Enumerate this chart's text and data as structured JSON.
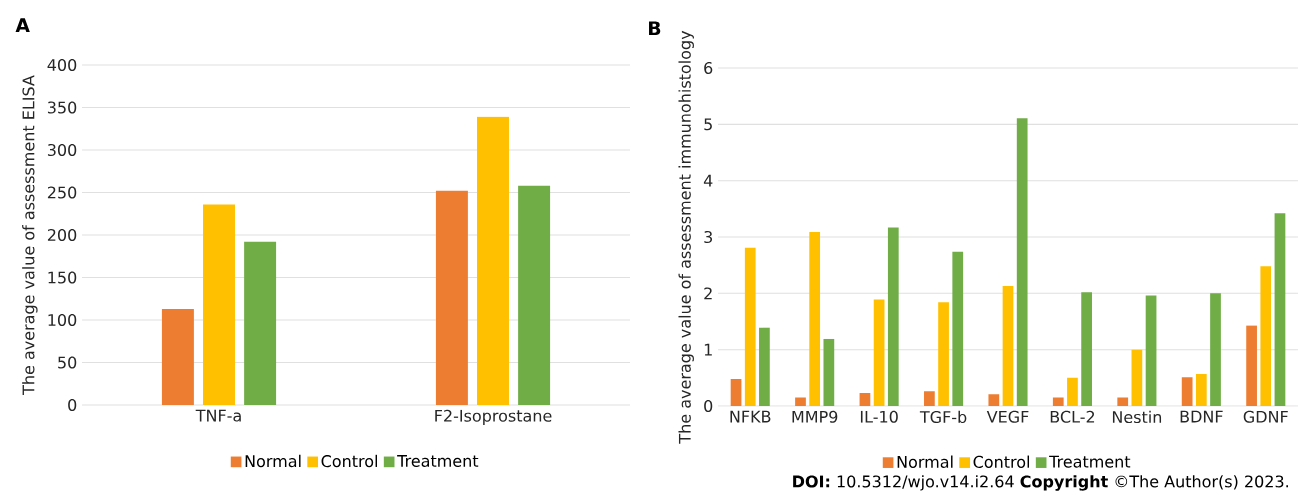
{
  "chart_data": [
    {
      "type": "bar",
      "title": "A",
      "ylabel": "The average value of assessment ELISA",
      "categories": [
        "TNF-a",
        "F2-Isoprostane"
      ],
      "series": [
        {
          "name": "Normal",
          "color": "#ed7d31",
          "values": [
            113,
            252
          ]
        },
        {
          "name": "Control",
          "color": "#ffc000",
          "values": [
            236,
            339
          ]
        },
        {
          "name": "Treatment",
          "color": "#70ad47",
          "values": [
            192,
            258
          ]
        }
      ],
      "ylim": [
        0,
        400
      ],
      "yticks": [
        0,
        50,
        100,
        150,
        200,
        250,
        300,
        350,
        400
      ],
      "grid": "y",
      "legend": "bottom"
    },
    {
      "type": "bar",
      "title": "B",
      "ylabel": "The average value of assessment immunohistology",
      "categories": [
        "NFKB",
        "MMP9",
        "IL-10",
        "TGF-b",
        "VEGF",
        "BCL-2",
        "Nestin",
        "BDNF",
        "GDNF"
      ],
      "series": [
        {
          "name": "Normal",
          "color": "#ed7d31",
          "values": [
            0.48,
            0.15,
            0.23,
            0.26,
            0.21,
            0.15,
            0.15,
            0.51,
            1.43
          ]
        },
        {
          "name": "Control",
          "color": "#ffc000",
          "values": [
            2.81,
            3.09,
            1.89,
            1.84,
            2.13,
            0.5,
            1.0,
            0.57,
            2.48
          ]
        },
        {
          "name": "Treatment",
          "color": "#70ad47",
          "values": [
            1.39,
            1.19,
            3.17,
            2.74,
            5.11,
            2.02,
            1.96,
            2.0,
            3.42
          ]
        }
      ],
      "ylim": [
        0,
        6
      ],
      "yticks": [
        0,
        1,
        2,
        3,
        4,
        5,
        6
      ],
      "grid": "y",
      "legend": "bottom",
      "annotations": [
        "**DOI:** 10.5312/wjo.v14.i2.64  **Copyright** ©The Author(s) 2023."
      ]
    }
  ]
}
